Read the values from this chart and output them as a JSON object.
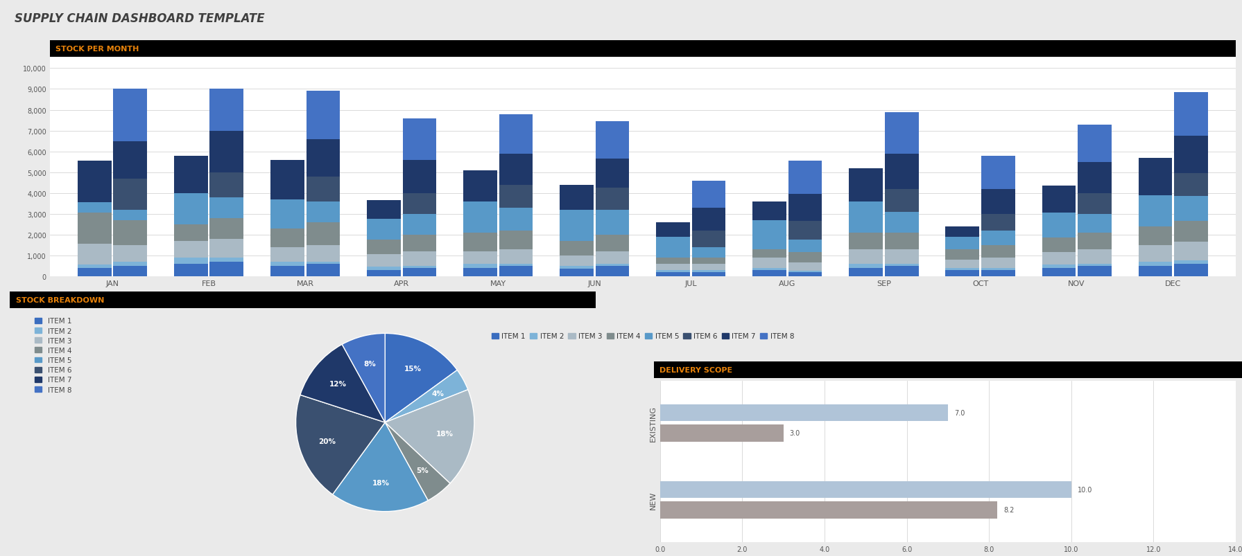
{
  "title": "SUPPLY CHAIN DASHBOARD TEMPLATE",
  "bar_chart_title": "STOCK PER MONTH",
  "months": [
    "JAN",
    "FEB",
    "MAR",
    "APR",
    "MAY",
    "JUN",
    "JUL",
    "AUG",
    "SEP",
    "OCT",
    "NOV",
    "DEC"
  ],
  "items": [
    "ITEM 1",
    "ITEM 2",
    "ITEM 3",
    "ITEM 4",
    "ITEM 5",
    "ITEM 6",
    "ITEM 7",
    "ITEM 8"
  ],
  "item_colors": [
    "#3A6DBF",
    "#7DB3D8",
    "#AABAC5",
    "#7F8C8D",
    "#5899C8",
    "#3A5070",
    "#1F3869",
    "#4472C4"
  ],
  "stock_data_bar1": [
    [
      400,
      150,
      1000,
      1500,
      500,
      0,
      2000,
      0
    ],
    [
      600,
      300,
      800,
      800,
      1500,
      0,
      1800,
      0
    ],
    [
      500,
      200,
      700,
      900,
      1400,
      0,
      1900,
      0
    ],
    [
      300,
      150,
      600,
      700,
      1000,
      0,
      900,
      0
    ],
    [
      400,
      200,
      600,
      900,
      1500,
      0,
      1500,
      0
    ],
    [
      350,
      150,
      500,
      700,
      1500,
      0,
      1200,
      0
    ],
    [
      200,
      100,
      300,
      300,
      1000,
      0,
      700,
      0
    ],
    [
      300,
      100,
      500,
      400,
      1400,
      0,
      900,
      0
    ],
    [
      400,
      200,
      700,
      800,
      1500,
      0,
      1600,
      0
    ],
    [
      300,
      100,
      400,
      500,
      600,
      0,
      500,
      0
    ],
    [
      400,
      150,
      600,
      700,
      1200,
      0,
      1300,
      0
    ],
    [
      500,
      200,
      800,
      900,
      1500,
      0,
      1800,
      0
    ]
  ],
  "stock_data_bar2": [
    [
      500,
      200,
      800,
      1200,
      500,
      1500,
      1800,
      2500
    ],
    [
      700,
      200,
      900,
      1000,
      1000,
      1200,
      2000,
      2000
    ],
    [
      600,
      100,
      800,
      1100,
      1000,
      1200,
      1800,
      2300
    ],
    [
      400,
      100,
      700,
      800,
      1000,
      1000,
      1600,
      2000
    ],
    [
      500,
      100,
      700,
      900,
      1100,
      1100,
      1500,
      1900
    ],
    [
      500,
      100,
      600,
      800,
      1200,
      1050,
      1400,
      1800
    ],
    [
      200,
      80,
      300,
      300,
      500,
      800,
      1100,
      1300
    ],
    [
      200,
      50,
      400,
      500,
      600,
      900,
      1300,
      1600
    ],
    [
      500,
      100,
      700,
      800,
      1000,
      1100,
      1700,
      2000
    ],
    [
      300,
      100,
      500,
      600,
      700,
      800,
      1200,
      1600
    ],
    [
      500,
      100,
      700,
      800,
      900,
      1000,
      1500,
      1800
    ],
    [
      600,
      150,
      900,
      1000,
      1200,
      1100,
      1800,
      2100
    ]
  ],
  "pie_title": "STOCK BREAKDOWN",
  "pie_values": [
    15,
    4,
    18,
    5,
    18,
    20,
    12,
    8
  ],
  "pie_colors": [
    "#3A6DBF",
    "#7DB3D8",
    "#AABAC5",
    "#7F8C8D",
    "#5899C8",
    "#3A5070",
    "#1F3869",
    "#4472C4"
  ],
  "pie_labels": [
    "15%",
    "4%",
    "18%",
    "5%",
    "18%",
    "20%",
    "12%",
    "8%"
  ],
  "delivery_title": "DELIVERY SCOPE",
  "delivery_categories": [
    "EXISTING",
    "NEW"
  ],
  "delivery_goal": [
    7.0,
    10.0
  ],
  "delivery_days": [
    3.0,
    8.2
  ],
  "delivery_goal_color": "#B0C4D8",
  "delivery_days_color": "#A89E9C",
  "delivery_xlim": [
    0,
    14.0
  ],
  "delivery_xticks": [
    0.0,
    2.0,
    4.0,
    6.0,
    8.0,
    10.0,
    12.0,
    14.0
  ],
  "bg_color": "#EAEAEA",
  "plot_bg": "#FFFFFF",
  "header_bg": "#000000",
  "header_fg": "#E8820A",
  "title_color": "#404040"
}
